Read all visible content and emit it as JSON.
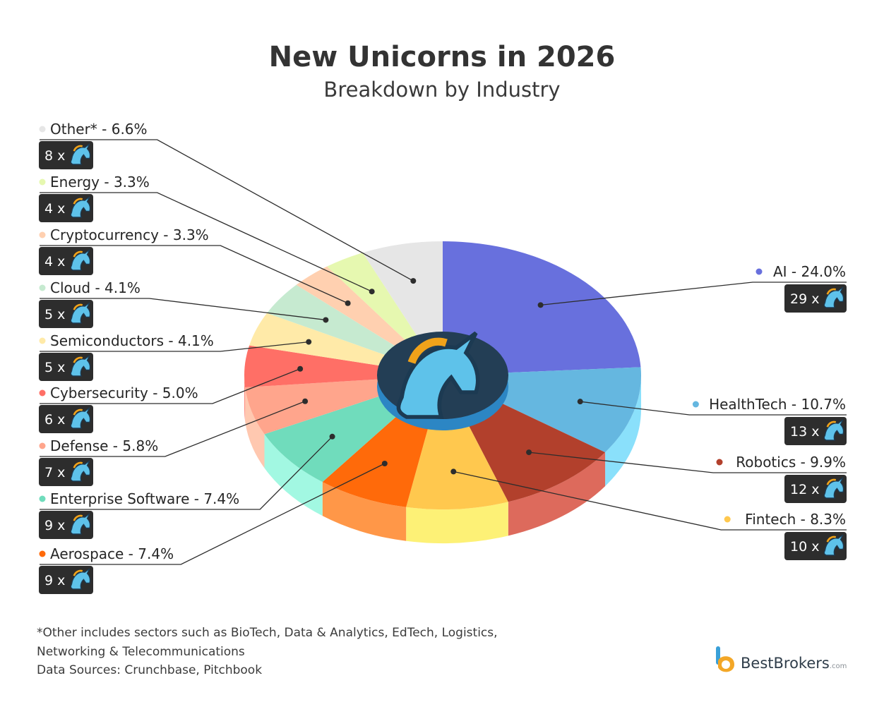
{
  "title": "New Unicorns in 2026",
  "subtitle": "Breakdown by Industry",
  "chart_data": {
    "type": "pie",
    "title": "New Unicorns in 2026",
    "subtitle": "Breakdown by Industry",
    "slices": [
      {
        "label": "AI",
        "percent_text": "24.0%",
        "percent": 24.0,
        "count": 29,
        "color": "#6870dd",
        "side_color": "#5058c0"
      },
      {
        "label": "HealthTech",
        "percent_text": "10.7%",
        "percent": 10.7,
        "count": 13,
        "color": "#65b7e0",
        "side_color": "#8ae0fb"
      },
      {
        "label": "Robotics",
        "percent_text": "9.9%",
        "percent": 9.9,
        "count": 12,
        "color": "#b2402c",
        "side_color": "#dd6a5c"
      },
      {
        "label": "Fintech",
        "percent_text": "8.3%",
        "percent": 8.3,
        "count": 10,
        "color": "#ffc84e",
        "side_color": "#fdf176"
      },
      {
        "label": "Aerospace",
        "percent_text": "7.4%",
        "percent": 7.4,
        "count": 9,
        "color": "#ff6a0a",
        "side_color": "#ff9748"
      },
      {
        "label": "Enterprise Software",
        "percent_text": "7.4%",
        "percent": 7.4,
        "count": 9,
        "color": "#70dcbc",
        "side_color": "#a2f8e2"
      },
      {
        "label": "Defense",
        "percent_text": "5.8%",
        "percent": 5.8,
        "count": 7,
        "color": "#ffa58c",
        "side_color": "#ffc8b0"
      },
      {
        "label": "Cybersecurity",
        "percent_text": "5.0%",
        "percent": 5.0,
        "count": 6,
        "color": "#ff6f66",
        "side_color": "#ff8c80"
      },
      {
        "label": "Semiconductors",
        "percent_text": "4.1%",
        "percent": 4.1,
        "count": 5,
        "color": "#ffeaa8",
        "side_color": "#fff2c4"
      },
      {
        "label": "Cloud",
        "percent_text": "4.1%",
        "percent": 4.1,
        "count": 5,
        "color": "#c6ead0",
        "side_color": "#d8f2de"
      },
      {
        "label": "Cryptocurrency",
        "percent_text": "3.3%",
        "percent": 3.3,
        "count": 4,
        "color": "#ffd0b0",
        "side_color": "#ffdcc4"
      },
      {
        "label": "Energy",
        "percent_text": "3.3%",
        "percent": 3.3,
        "count": 4,
        "color": "#e6f8b0",
        "side_color": "#eefac8"
      },
      {
        "label": "Other*",
        "percent_text": "6.6%",
        "percent": 6.6,
        "count": 8,
        "color": "#e6e6e6",
        "side_color": "#efefef"
      }
    ],
    "count_prefix": "x",
    "badge_icon": "unicorn-head-icon",
    "center_icon": "unicorn-head-icon",
    "center_colors": {
      "top": "#233e55",
      "side": "#2c86c4"
    }
  },
  "footnote": {
    "line1": "*Other includes sectors such as BioTech, Data & Analytics, EdTech, Logistics,",
    "line2": "Networking & Telecommunications",
    "line3": "Data Sources: Crunchbase, Pitchbook"
  },
  "brand": {
    "name": "BestBrokers",
    "domain": ".com",
    "logo_icon": "bestbrokers-logo-icon"
  }
}
